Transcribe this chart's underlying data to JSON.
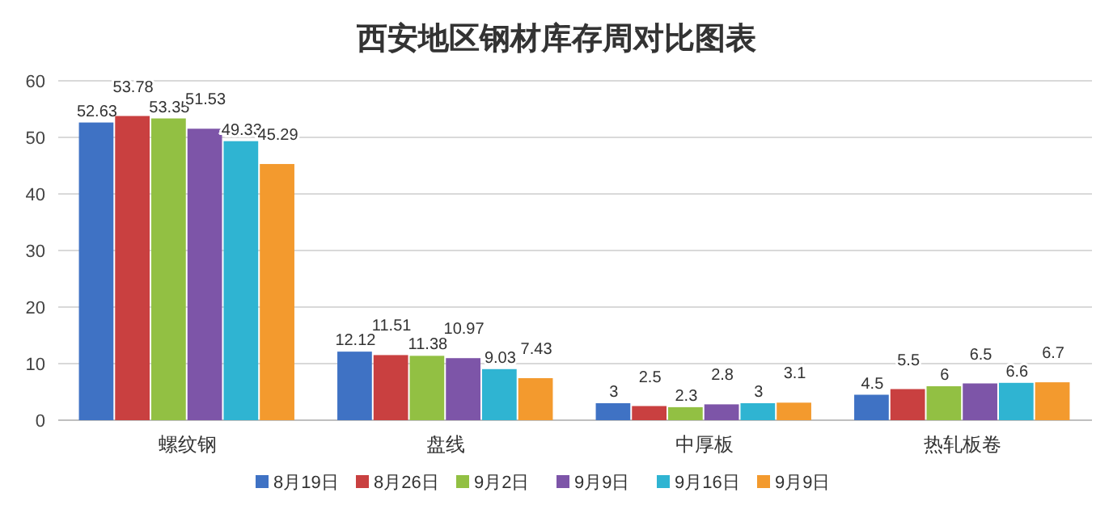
{
  "chart_data": {
    "type": "bar",
    "title": "西安地区钢材库存周对比图表",
    "categories": [
      "螺纹钢",
      "盘线",
      "中厚板",
      "热轧板卷"
    ],
    "series": [
      {
        "name": "8月19日",
        "color": "#3f72c4",
        "values": [
          52.63,
          12.12,
          3,
          4.5
        ]
      },
      {
        "name": "8月26日",
        "color": "#c94040",
        "values": [
          53.78,
          11.51,
          2.5,
          5.5
        ]
      },
      {
        "name": "9月2日",
        "color": "#92c043",
        "values": [
          53.35,
          11.38,
          2.3,
          6
        ]
      },
      {
        "name": "9月9日",
        "color": "#7d55a8",
        "values": [
          51.53,
          10.97,
          2.8,
          6.5
        ]
      },
      {
        "name": "9月16日",
        "color": "#2fb4d2",
        "values": [
          49.33,
          9.03,
          3,
          6.6
        ]
      },
      {
        "name": "9月9日",
        "color": "#f39a2e",
        "values": [
          45.29,
          7.43,
          3.1,
          6.7
        ]
      }
    ],
    "ylim": [
      0,
      60
    ],
    "yticks": [
      0,
      10,
      20,
      30,
      40,
      50,
      60
    ],
    "grid": "y",
    "legend": "bottom",
    "data_labels": true
  }
}
